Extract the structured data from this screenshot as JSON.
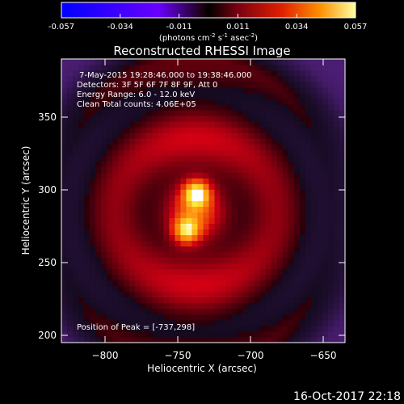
{
  "chart_data": {
    "type": "heatmap",
    "title": "Reconstructed RHESSI Image",
    "xlabel": "Heliocentric X (arcsec)",
    "ylabel": "Heliocentric Y (arcsec)",
    "xlim": [
      -830,
      -635
    ],
    "ylim": [
      195,
      390
    ],
    "x_ticks": [
      -800,
      -750,
      -700,
      -650
    ],
    "y_ticks": [
      200,
      250,
      300,
      350
    ],
    "colorbar": {
      "ticks": [
        "-0.057",
        "-0.034",
        "-0.011",
        "0.011",
        "0.034",
        "0.057"
      ],
      "range": [
        -0.057,
        0.057
      ],
      "units_prefix": "(photons cm",
      "units_exp1": "-2",
      "units_mid": " s",
      "units_exp2": "-1",
      "units_mid2": " asec",
      "units_exp3": "-2",
      "units_suffix": ")"
    },
    "annotations": [
      "7-May-2015 19:28:46.000 to 19:38:46.000",
      "Detectors: 3F 5F 6F 7F 8F 9F, Att 0",
      "Energy Range: 6.0 - 12.0 keV",
      "Clean    Total counts: 4.06E+05"
    ],
    "peak_label": "Position of Peak = [-737,298]",
    "sources": [
      {
        "x": -737,
        "y": 298,
        "peak": 0.057
      },
      {
        "x": -744,
        "y": 272,
        "peak": 0.05
      }
    ],
    "colors": {
      "negative": "#4b2a8a",
      "zero": "#000000",
      "peak": "#ffffff"
    }
  },
  "footer_date": "16-Oct-2017 22:18"
}
